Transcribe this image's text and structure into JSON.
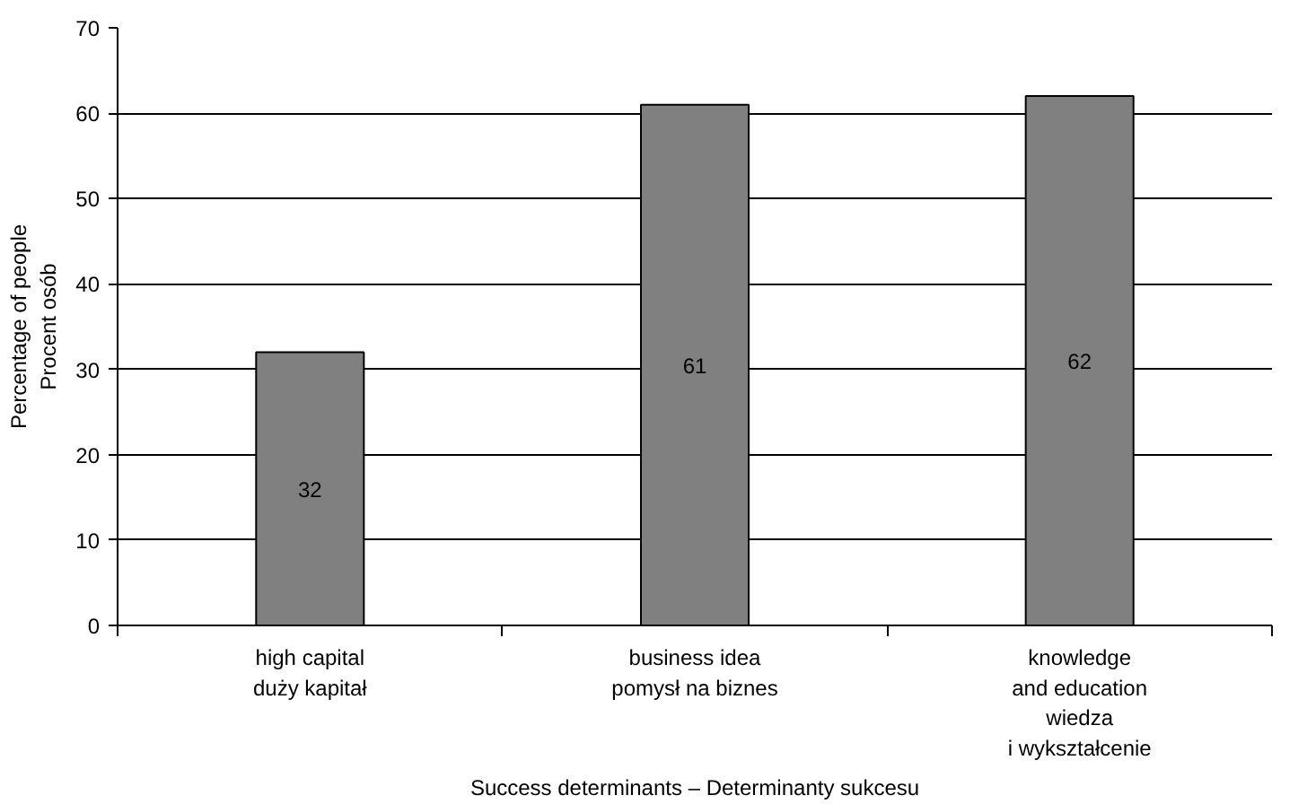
{
  "chart_data": {
    "type": "bar",
    "categories": [
      "high capital\nduży kapitał",
      "business idea\npomysł na biznes",
      "knowledge\nand education\nwiedza\ni wykształcenie"
    ],
    "values": [
      32,
      61,
      62
    ],
    "color": "#808080",
    "xlabel": "Success determinants – Determinanty sukcesu",
    "ylabel": "Percentage of people\nProcent osób",
    "ylim": [
      0,
      70
    ],
    "yticks": [
      0,
      10,
      20,
      30,
      40,
      50,
      60,
      70
    ],
    "grid": "y",
    "data_labels": true
  }
}
